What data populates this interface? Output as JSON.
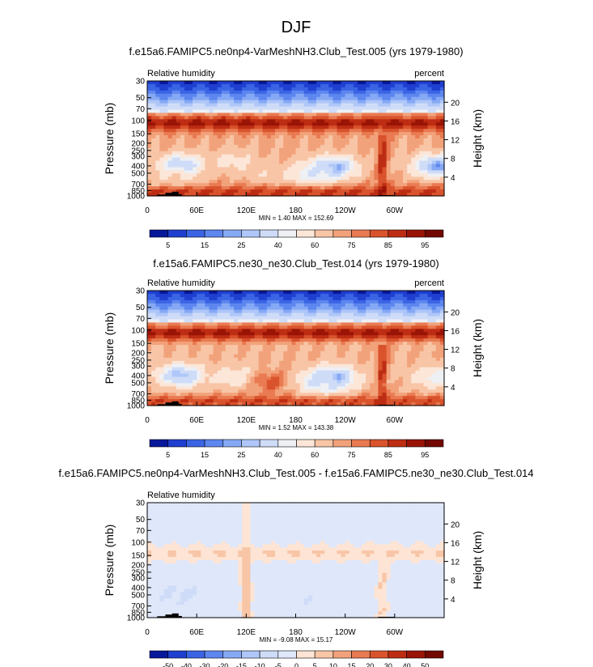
{
  "page_title": "DJF",
  "chart_data": [
    {
      "type": "heatmap",
      "title": "f.e15a6.FAMIPC5.ne0np4-VarMeshNH3.Club_Test.005 (yrs 1979-1980)",
      "left_string": "Relative humidity",
      "right_string": "percent",
      "ylabel": "Pressure (mb)",
      "ylabel_right": "Height (km)",
      "x_ticks": [
        "0",
        "60E",
        "120E",
        "180",
        "120W",
        "60W"
      ],
      "x_tick_values": [
        0,
        60,
        120,
        180,
        240,
        300
      ],
      "xlim": [
        0,
        360
      ],
      "y_ticks": [
        "30",
        "50",
        "70",
        "100",
        "150",
        "200",
        "250",
        "300",
        "400",
        "500",
        "700",
        "850",
        "1000"
      ],
      "y_tick_values": [
        30,
        50,
        70,
        100,
        150,
        200,
        250,
        300,
        400,
        500,
        700,
        850,
        1000
      ],
      "ylim": [
        1000,
        30
      ],
      "height_ticks": [
        "4",
        "8",
        "12",
        "16",
        "20"
      ],
      "height_tick_values": [
        4,
        8,
        12,
        16,
        20
      ],
      "stats": "MIN =   1.40  MAX = 152.69",
      "min": 1.4,
      "max": 152.69,
      "colorbar_labels": [
        "5",
        "15",
        "25",
        "40",
        "60",
        "75",
        "85",
        "95"
      ],
      "colorbar_levels": [
        5,
        10,
        15,
        20,
        25,
        30,
        40,
        50,
        60,
        70,
        75,
        80,
        85,
        90,
        95
      ],
      "colorbar_colors": [
        "#08189a",
        "#1f3fd0",
        "#3a64e4",
        "#5d86ef",
        "#86a9f5",
        "#afc7f8",
        "#cfdcf8",
        "#eef0f4",
        "#fbe6d8",
        "#f8c5a6",
        "#f2a27a",
        "#e97a52",
        "#d9532c",
        "#bd2d13",
        "#9a1406",
        "#720800"
      ],
      "fields": {
        "base": 72,
        "dry_cells": [
          {
            "lon": 40,
            "p": 400,
            "value": 25
          },
          {
            "lon": 105,
            "p": 350,
            "value": 55
          },
          {
            "lon": 145,
            "p": 520,
            "value": 62
          },
          {
            "lon": 225,
            "p": 420,
            "value": 18
          },
          {
            "lon": 200,
            "p": 520,
            "value": 40
          },
          {
            "lon": 350,
            "p": 400,
            "value": 20
          },
          {
            "lon": 30,
            "p": 600,
            "value": 60
          }
        ],
        "moist_bands": [
          {
            "p": 110,
            "value": 95
          },
          {
            "p": 900,
            "value": 88
          },
          {
            "lon": 285,
            "value": 90
          }
        ]
      }
    },
    {
      "type": "heatmap",
      "title": "f.e15a6.FAMIPC5.ne30_ne30.Club_Test.014 (yrs 1979-1980)",
      "left_string": "Relative humidity",
      "right_string": "percent",
      "ylabel": "Pressure (mb)",
      "ylabel_right": "Height (km)",
      "x_ticks": [
        "0",
        "60E",
        "120E",
        "180",
        "120W",
        "60W"
      ],
      "x_tick_values": [
        0,
        60,
        120,
        180,
        240,
        300
      ],
      "xlim": [
        0,
        360
      ],
      "y_ticks": [
        "30",
        "50",
        "70",
        "100",
        "150",
        "200",
        "250",
        "300",
        "400",
        "500",
        "700",
        "850",
        "1000"
      ],
      "y_tick_values": [
        30,
        50,
        70,
        100,
        150,
        200,
        250,
        300,
        400,
        500,
        700,
        850,
        1000
      ],
      "ylim": [
        1000,
        30
      ],
      "height_ticks": [
        "4",
        "8",
        "12",
        "16",
        "20"
      ],
      "height_tick_values": [
        4,
        8,
        12,
        16,
        20
      ],
      "stats": "MIN =   1.52  MAX = 143.38",
      "min": 1.52,
      "max": 143.38,
      "colorbar_labels": [
        "5",
        "15",
        "25",
        "40",
        "60",
        "75",
        "85",
        "95"
      ],
      "colorbar_levels": [
        5,
        10,
        15,
        20,
        25,
        30,
        40,
        50,
        60,
        70,
        75,
        80,
        85,
        90,
        95
      ],
      "colorbar_colors": [
        "#08189a",
        "#1f3fd0",
        "#3a64e4",
        "#5d86ef",
        "#86a9f5",
        "#afc7f8",
        "#cfdcf8",
        "#eef0f4",
        "#fbe6d8",
        "#f8c5a6",
        "#f2a27a",
        "#e97a52",
        "#d9532c",
        "#bd2d13",
        "#9a1406",
        "#720800"
      ],
      "fields": {
        "base": 70,
        "dry_cells": [
          {
            "lon": 40,
            "p": 400,
            "value": 25
          },
          {
            "lon": 110,
            "p": 420,
            "value": 50
          },
          {
            "lon": 150,
            "p": 480,
            "value": 82
          },
          {
            "lon": 225,
            "p": 430,
            "value": 15
          },
          {
            "lon": 210,
            "p": 520,
            "value": 38
          },
          {
            "lon": 350,
            "p": 420,
            "value": 45
          }
        ],
        "moist_bands": [
          {
            "p": 110,
            "value": 95
          },
          {
            "p": 900,
            "value": 86
          },
          {
            "lon": 285,
            "value": 88
          }
        ]
      }
    },
    {
      "type": "heatmap",
      "title": "f.e15a6.FAMIPC5.ne0np4-VarMeshNH3.Club_Test.005 - f.e15a6.FAMIPC5.ne30_ne30.Club_Test.014",
      "left_string": "Relative humidity",
      "right_string": "",
      "ylabel": "Pressure (mb)",
      "ylabel_right": "Height (km)",
      "x_ticks": [
        "0",
        "60E",
        "120E",
        "180",
        "120W",
        "60W"
      ],
      "x_tick_values": [
        0,
        60,
        120,
        180,
        240,
        300
      ],
      "xlim": [
        0,
        360
      ],
      "y_ticks": [
        "30",
        "50",
        "70",
        "100",
        "150",
        "200",
        "250",
        "300",
        "400",
        "500",
        "700",
        "850",
        "1000"
      ],
      "y_tick_values": [
        30,
        50,
        70,
        100,
        150,
        200,
        250,
        300,
        400,
        500,
        700,
        850,
        1000
      ],
      "ylim": [
        1000,
        30
      ],
      "height_ticks": [
        "4",
        "8",
        "12",
        "16",
        "20"
      ],
      "height_tick_values": [
        4,
        8,
        12,
        16,
        20
      ],
      "stats": "MIN =  -9.08  MAX =  15.17",
      "min": -9.08,
      "max": 15.17,
      "colorbar_labels": [
        "-50",
        "-40",
        "-30",
        "-20",
        "-15",
        "-10",
        "-5",
        "0",
        "5",
        "10",
        "15",
        "20",
        "30",
        "40",
        "50"
      ],
      "colorbar_levels": [
        -50,
        -40,
        -30,
        -20,
        -15,
        -10,
        -5,
        0,
        5,
        10,
        15,
        20,
        30,
        40,
        50
      ],
      "colorbar_colors": [
        "#08189a",
        "#1f3fd0",
        "#3a64e4",
        "#5d86ef",
        "#86a9f5",
        "#afc7f8",
        "#cfdcf8",
        "#dfe7fa",
        "#fde4d4",
        "#f8c5a6",
        "#f2a27a",
        "#e97a52",
        "#d9532c",
        "#bd2d13",
        "#9a1406",
        "#720800"
      ],
      "fields": {
        "base": -2,
        "dry_cells": [
          {
            "lon": 40,
            "p": 500,
            "value": -6
          },
          {
            "lon": 200,
            "p": 600,
            "value": -4
          }
        ],
        "moist_bands": [
          {
            "p": 140,
            "value": 6
          },
          {
            "lon": 120,
            "value": 10
          },
          {
            "lon": 285,
            "value": 6
          }
        ]
      }
    }
  ]
}
